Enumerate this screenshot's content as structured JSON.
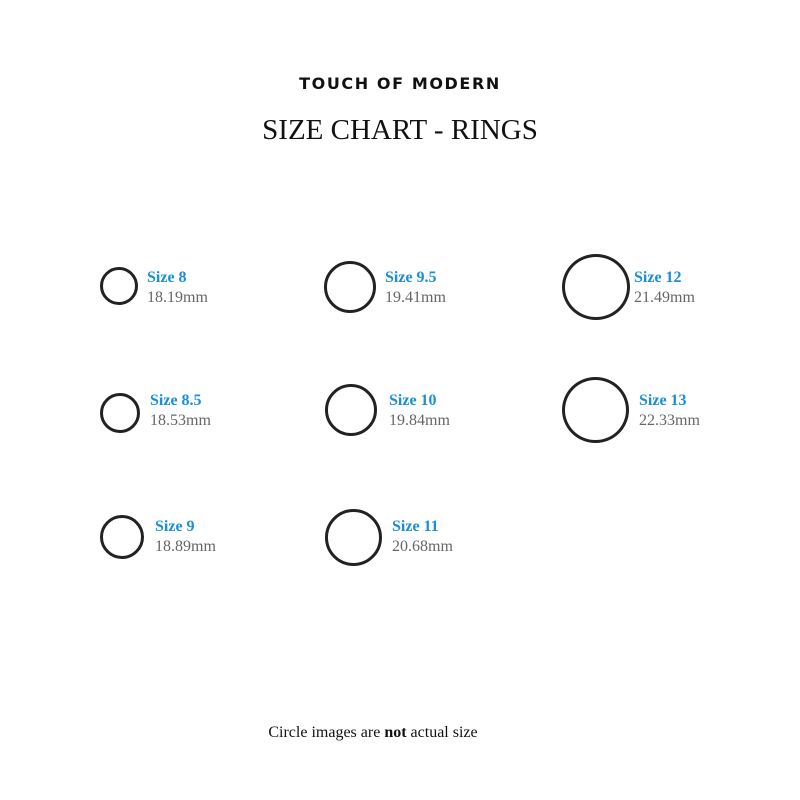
{
  "brand": "TOUCH OF MODERN",
  "title": "SIZE CHART - RINGS",
  "rings": [
    {
      "size": "Size 8",
      "diameter": "18.19mm"
    },
    {
      "size": "Size 9.5",
      "diameter": "19.41mm"
    },
    {
      "size": "Size 12",
      "diameter": "21.49mm"
    },
    {
      "size": "Size 8.5",
      "diameter": "18.53mm"
    },
    {
      "size": "Size 10",
      "diameter": "19.84mm"
    },
    {
      "size": "Size 13",
      "diameter": "22.33mm"
    },
    {
      "size": "Size 9",
      "diameter": "18.89mm"
    },
    {
      "size": "Size 11",
      "diameter": "20.68mm"
    }
  ],
  "note": {
    "before": "Circle images are ",
    "bold": "not",
    "after": " actual size"
  },
  "colors": {
    "size_label": "#1a8fd8",
    "diameter": "#666666",
    "ring": "#222222"
  }
}
